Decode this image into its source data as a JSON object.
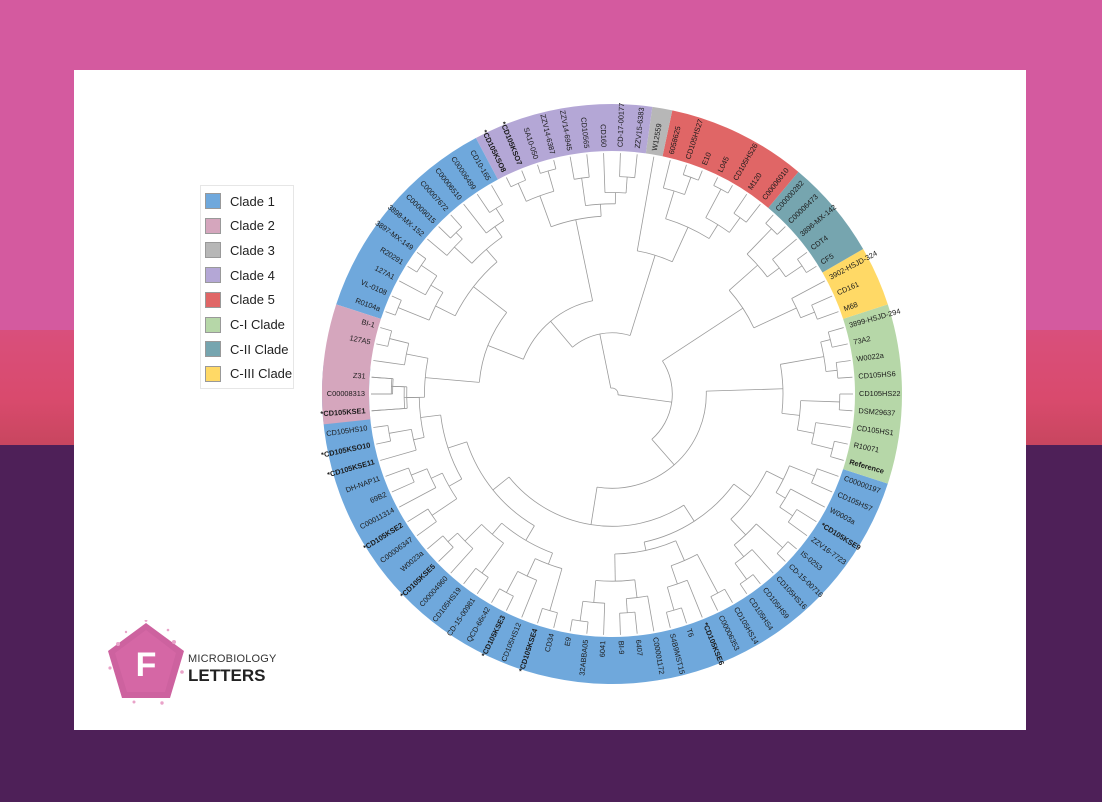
{
  "background": {
    "top_color": "#d45a9f",
    "mid_color": "#d94f7c",
    "bottom_color": "#4e2058"
  },
  "legend": {
    "items": [
      {
        "label": "Clade 1",
        "color": "#6fa8dc"
      },
      {
        "label": "Clade 2",
        "color": "#d5a6bd"
      },
      {
        "label": "Clade 3",
        "color": "#b7b7b7"
      },
      {
        "label": "Clade 4",
        "color": "#b4a7d6"
      },
      {
        "label": "Clade 5",
        "color": "#e06666"
      },
      {
        "label": "C-I Clade",
        "color": "#b6d7a8"
      },
      {
        "label": "C-II Clade",
        "color": "#76a5af"
      },
      {
        "label": "C-III Clade",
        "color": "#ffd966"
      }
    ]
  },
  "tree": {
    "sectors": [
      {
        "clade": "Clade 1",
        "start": 0,
        "end": 42
      },
      {
        "clade": "C-I Clade",
        "start": 42,
        "end": 51
      },
      {
        "clade": "C-III Clade",
        "start": 51,
        "end": 54
      },
      {
        "clade": "C-II Clade",
        "start": 54,
        "end": 59
      },
      {
        "clade": "Clade 5",
        "start": 59,
        "end": 66
      },
      {
        "clade": "Clade 3",
        "start": 66,
        "end": 67
      },
      {
        "clade": "Clade 4",
        "start": 67,
        "end": 76
      },
      {
        "clade": "Clade 1",
        "start": 76,
        "end": 87
      },
      {
        "clade": "Clade 2",
        "start": 87,
        "end": 93
      }
    ],
    "tips": [
      {
        "label": "Z31"
      },
      {
        "label": "C00008313"
      },
      {
        "label": "*CD105KSE1",
        "bold": true
      },
      {
        "label": "CD105HS10"
      },
      {
        "label": "*CD105KSO10",
        "bold": true
      },
      {
        "label": "*CD105KSE11",
        "bold": true
      },
      {
        "label": "DH-NAP11"
      },
      {
        "label": "69B2"
      },
      {
        "label": "C00011314"
      },
      {
        "label": "*CD105KSE2",
        "bold": true
      },
      {
        "label": "C00006347"
      },
      {
        "label": "W0023a"
      },
      {
        "label": "*CD105KSE5",
        "bold": true
      },
      {
        "label": "C00004960"
      },
      {
        "label": "CD105HS19"
      },
      {
        "label": "CD-15-00981"
      },
      {
        "label": "QCD-66c42"
      },
      {
        "label": "*CD105KSE3",
        "bold": true
      },
      {
        "label": "CD105HS12"
      },
      {
        "label": "*CD105KSE4",
        "bold": true
      },
      {
        "label": "CD34"
      },
      {
        "label": "E9"
      },
      {
        "label": "32ABBA05"
      },
      {
        "label": "6041"
      },
      {
        "label": "BI-9"
      },
      {
        "label": "6407"
      },
      {
        "label": "C00001172"
      },
      {
        "label": "S4B9MST15"
      },
      {
        "label": "T6"
      },
      {
        "label": "*CD105KSE6",
        "bold": true
      },
      {
        "label": "C00006353"
      },
      {
        "label": "CD105HS14"
      },
      {
        "label": "CD105HS4"
      },
      {
        "label": "CD105HS9"
      },
      {
        "label": "CD105HS16"
      },
      {
        "label": "CD-15-00716"
      },
      {
        "label": "IS-0253"
      },
      {
        "label": "ZZV16-7723"
      },
      {
        "label": "*CD105KSE9",
        "bold": true
      },
      {
        "label": "W0003a"
      },
      {
        "label": "CD105HS7"
      },
      {
        "label": "C00000197"
      },
      {
        "label": "Reference",
        "bold": true
      },
      {
        "label": "R10071"
      },
      {
        "label": "CD105HS1"
      },
      {
        "label": "DSM29637"
      },
      {
        "label": "CD105HS22"
      },
      {
        "label": "CD105HS6"
      },
      {
        "label": "W0022a"
      },
      {
        "label": "73A2"
      },
      {
        "label": "3899-HSJD-294"
      },
      {
        "label": "M68"
      },
      {
        "label": "CD161"
      },
      {
        "label": "3902-HSJD-324"
      },
      {
        "label": "CF5"
      },
      {
        "label": "CDT4"
      },
      {
        "label": "3896-MX-142"
      },
      {
        "label": "C00006473"
      },
      {
        "label": "C00000282"
      },
      {
        "label": "C00006010"
      },
      {
        "label": "M120"
      },
      {
        "label": "CD105HS26"
      },
      {
        "label": "L045"
      },
      {
        "label": "E10"
      },
      {
        "label": "CD105HS27"
      },
      {
        "label": "6058625"
      },
      {
        "label": "W12559"
      },
      {
        "label": "ZZV15-6383"
      },
      {
        "label": "CD-17-00177"
      },
      {
        "label": "CD160"
      },
      {
        "label": "CD10565"
      },
      {
        "label": "ZZV14-6945"
      },
      {
        "label": "ZZV14-6387"
      },
      {
        "label": "SA10-050"
      },
      {
        "label": "*CD105KSO7",
        "bold": true
      },
      {
        "label": "*CD105KSO8",
        "bold": true
      },
      {
        "label": "CD10-165"
      },
      {
        "label": "C00006499"
      },
      {
        "label": "C00006510"
      },
      {
        "label": "C00007672"
      },
      {
        "label": "C00009015"
      },
      {
        "label": "3898-MX-152"
      },
      {
        "label": "3897-MX-149"
      },
      {
        "label": "R20291"
      },
      {
        "label": "127A1"
      },
      {
        "label": "VL-0108"
      },
      {
        "label": "R0104a"
      },
      {
        "label": "BI-1"
      },
      {
        "label": "127A5"
      }
    ]
  },
  "logo": {
    "line1": "MICROBIOLOGY",
    "line2": "LETTERS",
    "letter": "F",
    "color": "#c4478e"
  }
}
